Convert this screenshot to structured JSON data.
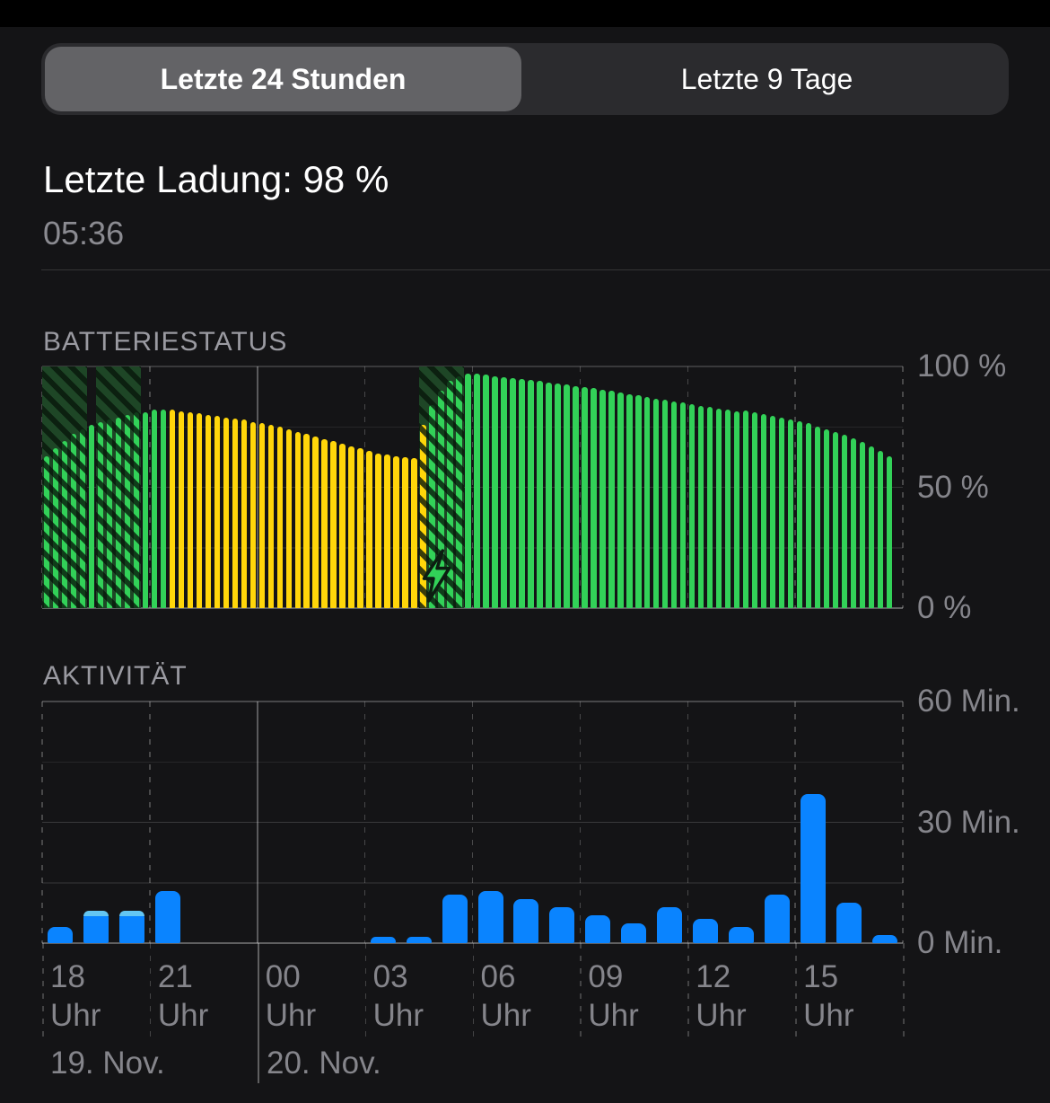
{
  "segmented_control": {
    "options": [
      {
        "label": "Letzte 24 Stunden",
        "selected": true
      },
      {
        "label": "Letzte 9 Tage",
        "selected": false
      }
    ]
  },
  "header": {
    "last_charge_label": "Letzte Ladung: 98 %",
    "last_charge_time": "05:36"
  },
  "battery_section": {
    "title": "BATTERIESTATUS"
  },
  "activity_section": {
    "title": "AKTIVITÄT"
  },
  "x_axis": {
    "tick_labels": [
      "18",
      "21",
      "00",
      "03",
      "06",
      "09",
      "12",
      "15"
    ],
    "tick_sublabel": "Uhr",
    "date_labels": [
      "19. Nov.",
      "20. Nov."
    ]
  },
  "colors": {
    "green": "#32d158",
    "yellow": "#ffd60a",
    "blue": "#0a84ff",
    "light_blue": "#64c6f2",
    "hatch_background": "#1e4626",
    "axis_label_gray": "#85858b",
    "section_title_gray": "#9a9aa1",
    "selected_segment_gray": "#636366"
  },
  "chart_data": [
    {
      "type": "bar",
      "name": "battery-level",
      "title": "BATTERIESTATUS",
      "ylabel": "%",
      "ylim": [
        0,
        100
      ],
      "y_tick_labels": [
        "100 %",
        "50 %",
        "0 %"
      ],
      "y_gridlines_pct": [
        100,
        75,
        50,
        25,
        0
      ],
      "interval_minutes": 15,
      "x_start": "18 Uhr (19. Nov.)",
      "values": [
        63,
        66,
        69,
        72,
        74,
        76,
        77,
        78,
        79,
        80,
        81,
        81,
        82,
        82,
        82,
        81.5,
        81,
        80.5,
        80,
        79.5,
        79,
        78.5,
        78,
        77,
        76.5,
        76,
        75,
        74,
        73,
        72,
        71,
        70,
        69,
        68,
        67,
        66,
        65,
        64,
        63.5,
        63,
        62.5,
        62,
        76,
        84,
        90,
        94,
        96,
        97,
        97,
        96.5,
        96,
        95.6,
        95.2,
        94.8,
        94.4,
        94,
        93.5,
        93,
        92.5,
        92,
        91.5,
        91,
        90.4,
        89.8,
        89.2,
        88.6,
        88,
        87.4,
        86.8,
        86.2,
        85.6,
        85,
        84.4,
        83.8,
        83.2,
        82.6,
        82,
        81.5,
        81.8,
        81.2,
        80.4,
        79.6,
        78.8,
        78,
        77.2,
        76.4,
        75.2,
        74,
        72.8,
        71.6,
        70.2,
        68.6,
        67,
        65,
        63
      ],
      "color_segments": [
        {
          "from": 0,
          "to": 13,
          "color": "green"
        },
        {
          "from": 14,
          "to": 42,
          "color": "yellow"
        },
        {
          "from": 43,
          "to": 94,
          "color": "green"
        }
      ],
      "charging_regions_bar_indices": [
        [
          0,
          4
        ],
        [
          6,
          10
        ],
        [
          42,
          46
        ]
      ],
      "charging_bolt_icon": "green-lightning-bolt"
    },
    {
      "type": "bar",
      "name": "activity-minutes",
      "title": "AKTIVITÄT",
      "ylabel": "Min.",
      "ylim": [
        0,
        60
      ],
      "y_tick_labels": [
        "60 Min.",
        "30 Min.",
        "0 Min."
      ],
      "y_gridlines_min": [
        60,
        45,
        30,
        15,
        0
      ],
      "interval_minutes": 60,
      "categories_hours": [
        "18",
        "19",
        "20",
        "21",
        "22",
        "23",
        "00",
        "01",
        "02",
        "03",
        "04",
        "05",
        "06",
        "07",
        "08",
        "09",
        "10",
        "11",
        "12",
        "13",
        "14",
        "15",
        "16",
        "17"
      ],
      "values": [
        4,
        8,
        8,
        13,
        0,
        0,
        0,
        0,
        0,
        1.5,
        1.5,
        12,
        13,
        11,
        9,
        7,
        5,
        9,
        6,
        4,
        12,
        37,
        10,
        2
      ],
      "screen_off_cap_values": [
        0,
        1.3,
        1.3,
        0,
        0,
        0,
        0,
        0,
        0,
        0,
        0,
        0,
        0,
        0,
        0,
        0,
        0,
        0,
        0,
        0,
        0,
        0,
        0,
        0
      ]
    }
  ]
}
